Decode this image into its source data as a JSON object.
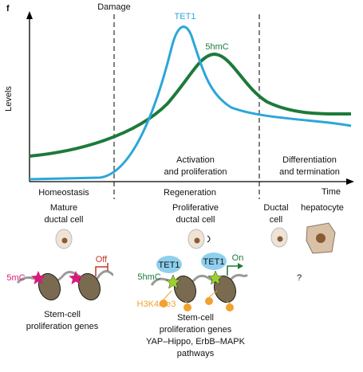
{
  "panel_letter": "f",
  "damage": "Damage",
  "y_axis_label": "Levels",
  "x_axis_label": "Time",
  "curves": {
    "tet1": "TET1",
    "hmc": "5hmC"
  },
  "phases": {
    "activation": [
      "Activation",
      "and proliferation"
    ],
    "differentiation": [
      "Differentiation",
      "and termination"
    ]
  },
  "stages": {
    "homeostasis": "Homeostasis",
    "regeneration": "Regeneration"
  },
  "cells": {
    "mature": [
      "Mature",
      "ductal cell"
    ],
    "proliferative": [
      "Proliferative",
      "ductal cell"
    ],
    "ductal": [
      "Ductal",
      "cell"
    ],
    "hepatocyte": "hepatocyte"
  },
  "left_panel": {
    "mark": "5mC",
    "state": "Off",
    "caption": [
      "Stem-cell",
      "proliferation genes"
    ]
  },
  "middle_panel": {
    "enzyme": [
      "TET1",
      "TET1"
    ],
    "mark": "5hmC",
    "histone": "H3K4me3",
    "state": "On",
    "caption": [
      "Stem-cell",
      "proliferation genes",
      "YAP–Hippo, ErbB–MAPK",
      "pathways"
    ]
  },
  "right_panel": {
    "unknown": "?"
  }
}
